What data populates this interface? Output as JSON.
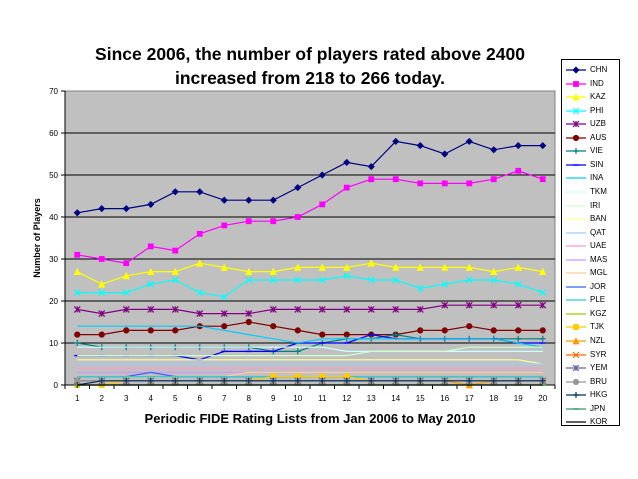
{
  "chart_data": {
    "type": "line",
    "title_lines": [
      "Since 2006, the number of players rated above 2400",
      "increased from 218 to 266 today."
    ],
    "xlabel": "Periodic FIDE Rating Lists from Jan 2006 to May 2010",
    "ylabel": "Number of Players",
    "categories": [
      "1",
      "2",
      "3",
      "4",
      "5",
      "6",
      "7",
      "8",
      "9",
      "10",
      "11",
      "12",
      "13",
      "14",
      "15",
      "16",
      "17",
      "18",
      "19",
      "20"
    ],
    "ylim": [
      0,
      70
    ],
    "yticks": [
      0,
      10,
      20,
      30,
      40,
      50,
      60,
      70
    ],
    "grid": true,
    "plot_background": "#c0c0c0",
    "legend_position": "right",
    "series": [
      {
        "name": "CHN",
        "color": "#000080",
        "marker": "diamond",
        "values": [
          41,
          42,
          42,
          43,
          46,
          46,
          44,
          44,
          44,
          47,
          50,
          53,
          52,
          58,
          57,
          55,
          58,
          56,
          57,
          57
        ]
      },
      {
        "name": "IND",
        "color": "#ff00ff",
        "marker": "square",
        "values": [
          31,
          30,
          29,
          33,
          32,
          36,
          38,
          39,
          39,
          40,
          43,
          47,
          49,
          49,
          48,
          48,
          48,
          49,
          51,
          49
        ]
      },
      {
        "name": "KAZ",
        "color": "#ffff00",
        "marker": "triangle",
        "values": [
          27,
          24,
          26,
          27,
          27,
          29,
          28,
          27,
          27,
          28,
          28,
          28,
          29,
          28,
          28,
          28,
          28,
          27,
          28,
          27
        ]
      },
      {
        "name": "PHI",
        "color": "#00ffff",
        "marker": "x",
        "values": [
          22,
          22,
          22,
          24,
          25,
          22,
          21,
          25,
          25,
          25,
          25,
          26,
          25,
          25,
          23,
          24,
          25,
          25,
          24,
          22
        ]
      },
      {
        "name": "UZB",
        "color": "#800080",
        "marker": "star",
        "values": [
          18,
          17,
          18,
          18,
          18,
          17,
          17,
          17,
          18,
          18,
          18,
          18,
          18,
          18,
          18,
          19,
          19,
          19,
          19,
          19
        ]
      },
      {
        "name": "AUS",
        "color": "#800000",
        "marker": "circle",
        "values": [
          12,
          12,
          13,
          13,
          13,
          14,
          14,
          15,
          14,
          13,
          12,
          12,
          12,
          12,
          13,
          13,
          14,
          13,
          13,
          13
        ]
      },
      {
        "name": "VIE",
        "color": "#008080",
        "marker": "plus",
        "values": [
          10,
          9,
          9,
          9,
          9,
          9,
          9,
          9,
          8,
          8,
          10,
          11,
          11,
          12,
          11,
          11,
          11,
          11,
          11,
          11
        ]
      },
      {
        "name": "SIN",
        "color": "#0000ff",
        "marker": "dash",
        "values": [
          7,
          7,
          7,
          7,
          7,
          6,
          8,
          8,
          8,
          10,
          10,
          10,
          12,
          11,
          11,
          11,
          11,
          11,
          10,
          10
        ]
      },
      {
        "name": "INA",
        "color": "#00ccff",
        "marker": "none",
        "values": [
          14,
          14,
          14,
          14,
          14,
          14,
          13,
          12,
          11,
          10,
          11,
          11,
          11,
          11,
          11,
          11,
          11,
          11,
          10,
          9
        ]
      },
      {
        "name": "TKM",
        "color": "#ccffff",
        "marker": "none",
        "values": [
          9,
          9,
          9,
          9,
          9,
          9,
          9,
          9,
          9,
          9,
          9,
          8,
          8,
          8,
          8,
          8,
          8,
          8,
          8,
          8
        ]
      },
      {
        "name": "IRI",
        "color": "#ccffcc",
        "marker": "none",
        "values": [
          7,
          7,
          7,
          7,
          7,
          7,
          7,
          7,
          7,
          7,
          7,
          7,
          8,
          8,
          8,
          8,
          9,
          9,
          9,
          9
        ]
      },
      {
        "name": "BAN",
        "color": "#ffff99",
        "marker": "none",
        "values": [
          6,
          6,
          6,
          6,
          6,
          6,
          6,
          6,
          6,
          6,
          6,
          6,
          6,
          6,
          6,
          6,
          6,
          6,
          6,
          5
        ]
      },
      {
        "name": "QAT",
        "color": "#99ccff",
        "marker": "none",
        "values": [
          5,
          5,
          5,
          5,
          5,
          5,
          5,
          5,
          5,
          5,
          5,
          5,
          5,
          5,
          5,
          5,
          5,
          5,
          5,
          5
        ]
      },
      {
        "name": "UAE",
        "color": "#ff99cc",
        "marker": "none",
        "values": [
          4,
          4,
          4,
          4,
          4,
          4,
          4,
          4,
          4,
          4,
          4,
          4,
          4,
          4,
          4,
          4,
          4,
          4,
          4,
          4
        ]
      },
      {
        "name": "MAS",
        "color": "#cc99ff",
        "marker": "none",
        "values": [
          3,
          3,
          3,
          3,
          3,
          3,
          3,
          3,
          3,
          3,
          3,
          3,
          3,
          3,
          3,
          3,
          3,
          3,
          3,
          3
        ]
      },
      {
        "name": "MGL",
        "color": "#ffcc99",
        "marker": "none",
        "values": [
          2,
          2,
          2,
          2,
          2,
          2,
          2,
          3,
          3,
          3,
          3,
          3,
          3,
          3,
          3,
          3,
          3,
          3,
          3,
          3
        ]
      },
      {
        "name": "JOR",
        "color": "#3366ff",
        "marker": "none",
        "values": [
          2,
          2,
          2,
          3,
          2,
          2,
          2,
          2,
          2,
          2,
          2,
          2,
          2,
          2,
          2,
          2,
          2,
          2,
          2,
          2
        ]
      },
      {
        "name": "PLE",
        "color": "#33cccc",
        "marker": "none",
        "values": [
          2,
          2,
          2,
          2,
          2,
          2,
          2,
          2,
          2,
          2,
          2,
          2,
          2,
          2,
          2,
          2,
          2,
          2,
          2,
          2
        ]
      },
      {
        "name": "KGZ",
        "color": "#99cc00",
        "marker": "none",
        "values": [
          1,
          1,
          1,
          1,
          1,
          1,
          1,
          1,
          1,
          1,
          1,
          1,
          1,
          1,
          1,
          1,
          1,
          1,
          1,
          1
        ]
      },
      {
        "name": "TJK",
        "color": "#ffcc00",
        "marker": "square",
        "values": [
          0,
          0,
          1,
          1,
          1,
          1,
          1,
          1,
          2,
          2,
          2,
          2,
          1,
          1,
          1,
          1,
          1,
          1,
          1,
          1
        ]
      },
      {
        "name": "NZL",
        "color": "#ff9900",
        "marker": "triangle",
        "values": [
          1,
          1,
          1,
          1,
          1,
          1,
          1,
          1,
          1,
          1,
          1,
          1,
          1,
          1,
          1,
          1,
          0,
          1,
          1,
          1
        ]
      },
      {
        "name": "SYR",
        "color": "#ff6600",
        "marker": "x",
        "values": [
          1,
          1,
          1,
          1,
          1,
          1,
          1,
          1,
          1,
          1,
          1,
          1,
          1,
          1,
          1,
          1,
          1,
          1,
          1,
          1
        ]
      },
      {
        "name": "YEM",
        "color": "#666699",
        "marker": "star",
        "values": [
          1,
          1,
          1,
          1,
          1,
          1,
          1,
          1,
          1,
          1,
          1,
          1,
          1,
          1,
          1,
          1,
          1,
          1,
          1,
          1
        ]
      },
      {
        "name": "BRU",
        "color": "#969696",
        "marker": "circle",
        "values": [
          1,
          1,
          1,
          1,
          1,
          1,
          1,
          1,
          1,
          1,
          1,
          1,
          1,
          1,
          1,
          1,
          1,
          1,
          1,
          1
        ]
      },
      {
        "name": "HKG",
        "color": "#003366",
        "marker": "plus",
        "values": [
          0,
          1,
          1,
          1,
          1,
          1,
          1,
          1,
          1,
          1,
          1,
          1,
          1,
          1,
          1,
          1,
          1,
          1,
          1,
          1
        ]
      },
      {
        "name": "JPN",
        "color": "#339966",
        "marker": "dash",
        "values": [
          0,
          0,
          0,
          0,
          0,
          0,
          0,
          0,
          0,
          0,
          0,
          0,
          0,
          0,
          0,
          0,
          0,
          0,
          0,
          0
        ]
      },
      {
        "name": "KOR",
        "color": "#000000",
        "marker": "none",
        "values": [
          0,
          0,
          0,
          0,
          0,
          0,
          0,
          0,
          0,
          0,
          0,
          0,
          0,
          0,
          0,
          0,
          0,
          0,
          0,
          0
        ]
      }
    ]
  }
}
